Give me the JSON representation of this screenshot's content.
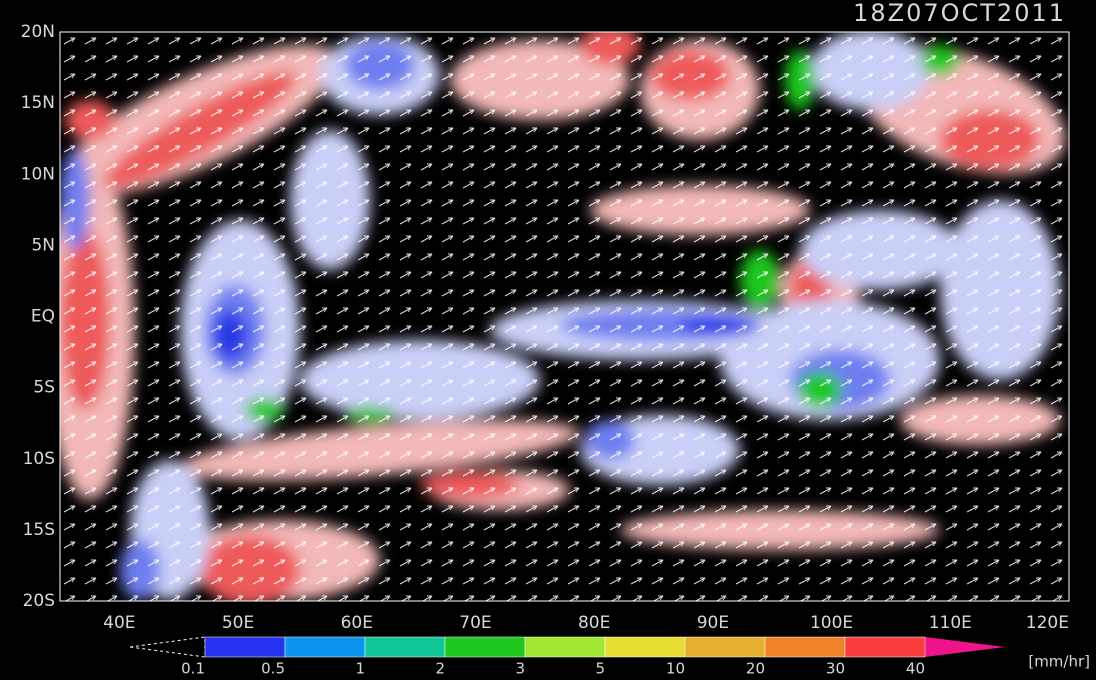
{
  "header": {
    "title": "18Z07OCT2011"
  },
  "map": {
    "lat_labels": [
      "20N",
      "15N",
      "10N",
      "5N",
      "EQ",
      "5S",
      "10S",
      "15S",
      "20S"
    ],
    "lon_labels": [
      "40E",
      "50E",
      "60E",
      "70E",
      "80E",
      "90E",
      "100E",
      "110E",
      "120E"
    ]
  },
  "colorbar": {
    "labels": [
      "0.1",
      "0.5",
      "1",
      "2",
      "3",
      "5",
      "10",
      "20",
      "30",
      "40"
    ],
    "unit": "[mm/hr]"
  }
}
